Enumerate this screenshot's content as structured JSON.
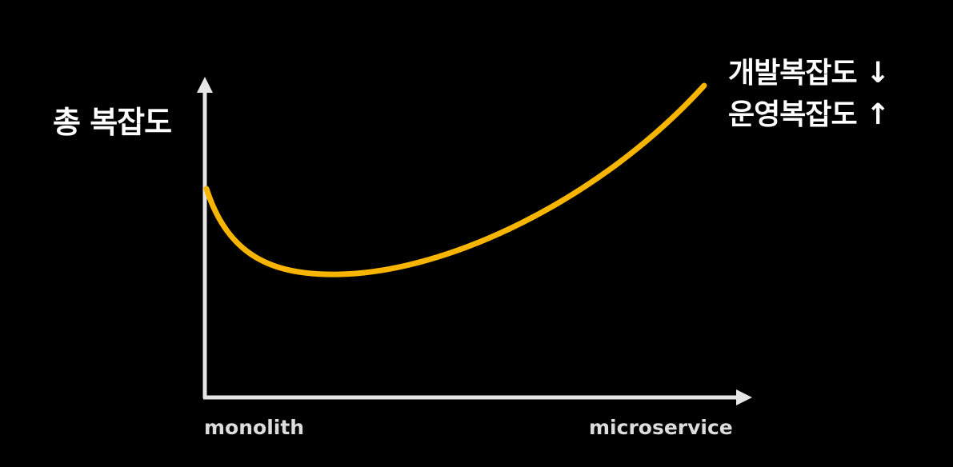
{
  "y_axis_label": "총 복잡도",
  "annotation_lines": [
    "개발복잡도 ↓",
    "운영복잡도 ↑"
  ],
  "x_axis": {
    "left_label": "monolith",
    "right_label": "microservice"
  },
  "colors": {
    "background": "#000000",
    "axis": "#e6e6e6",
    "curve": "#f7b500",
    "text": "#ffffff"
  },
  "curve": {
    "shape": "U-shaped, minimum near left third, rising steeply to the right",
    "color": "#f7b500"
  }
}
